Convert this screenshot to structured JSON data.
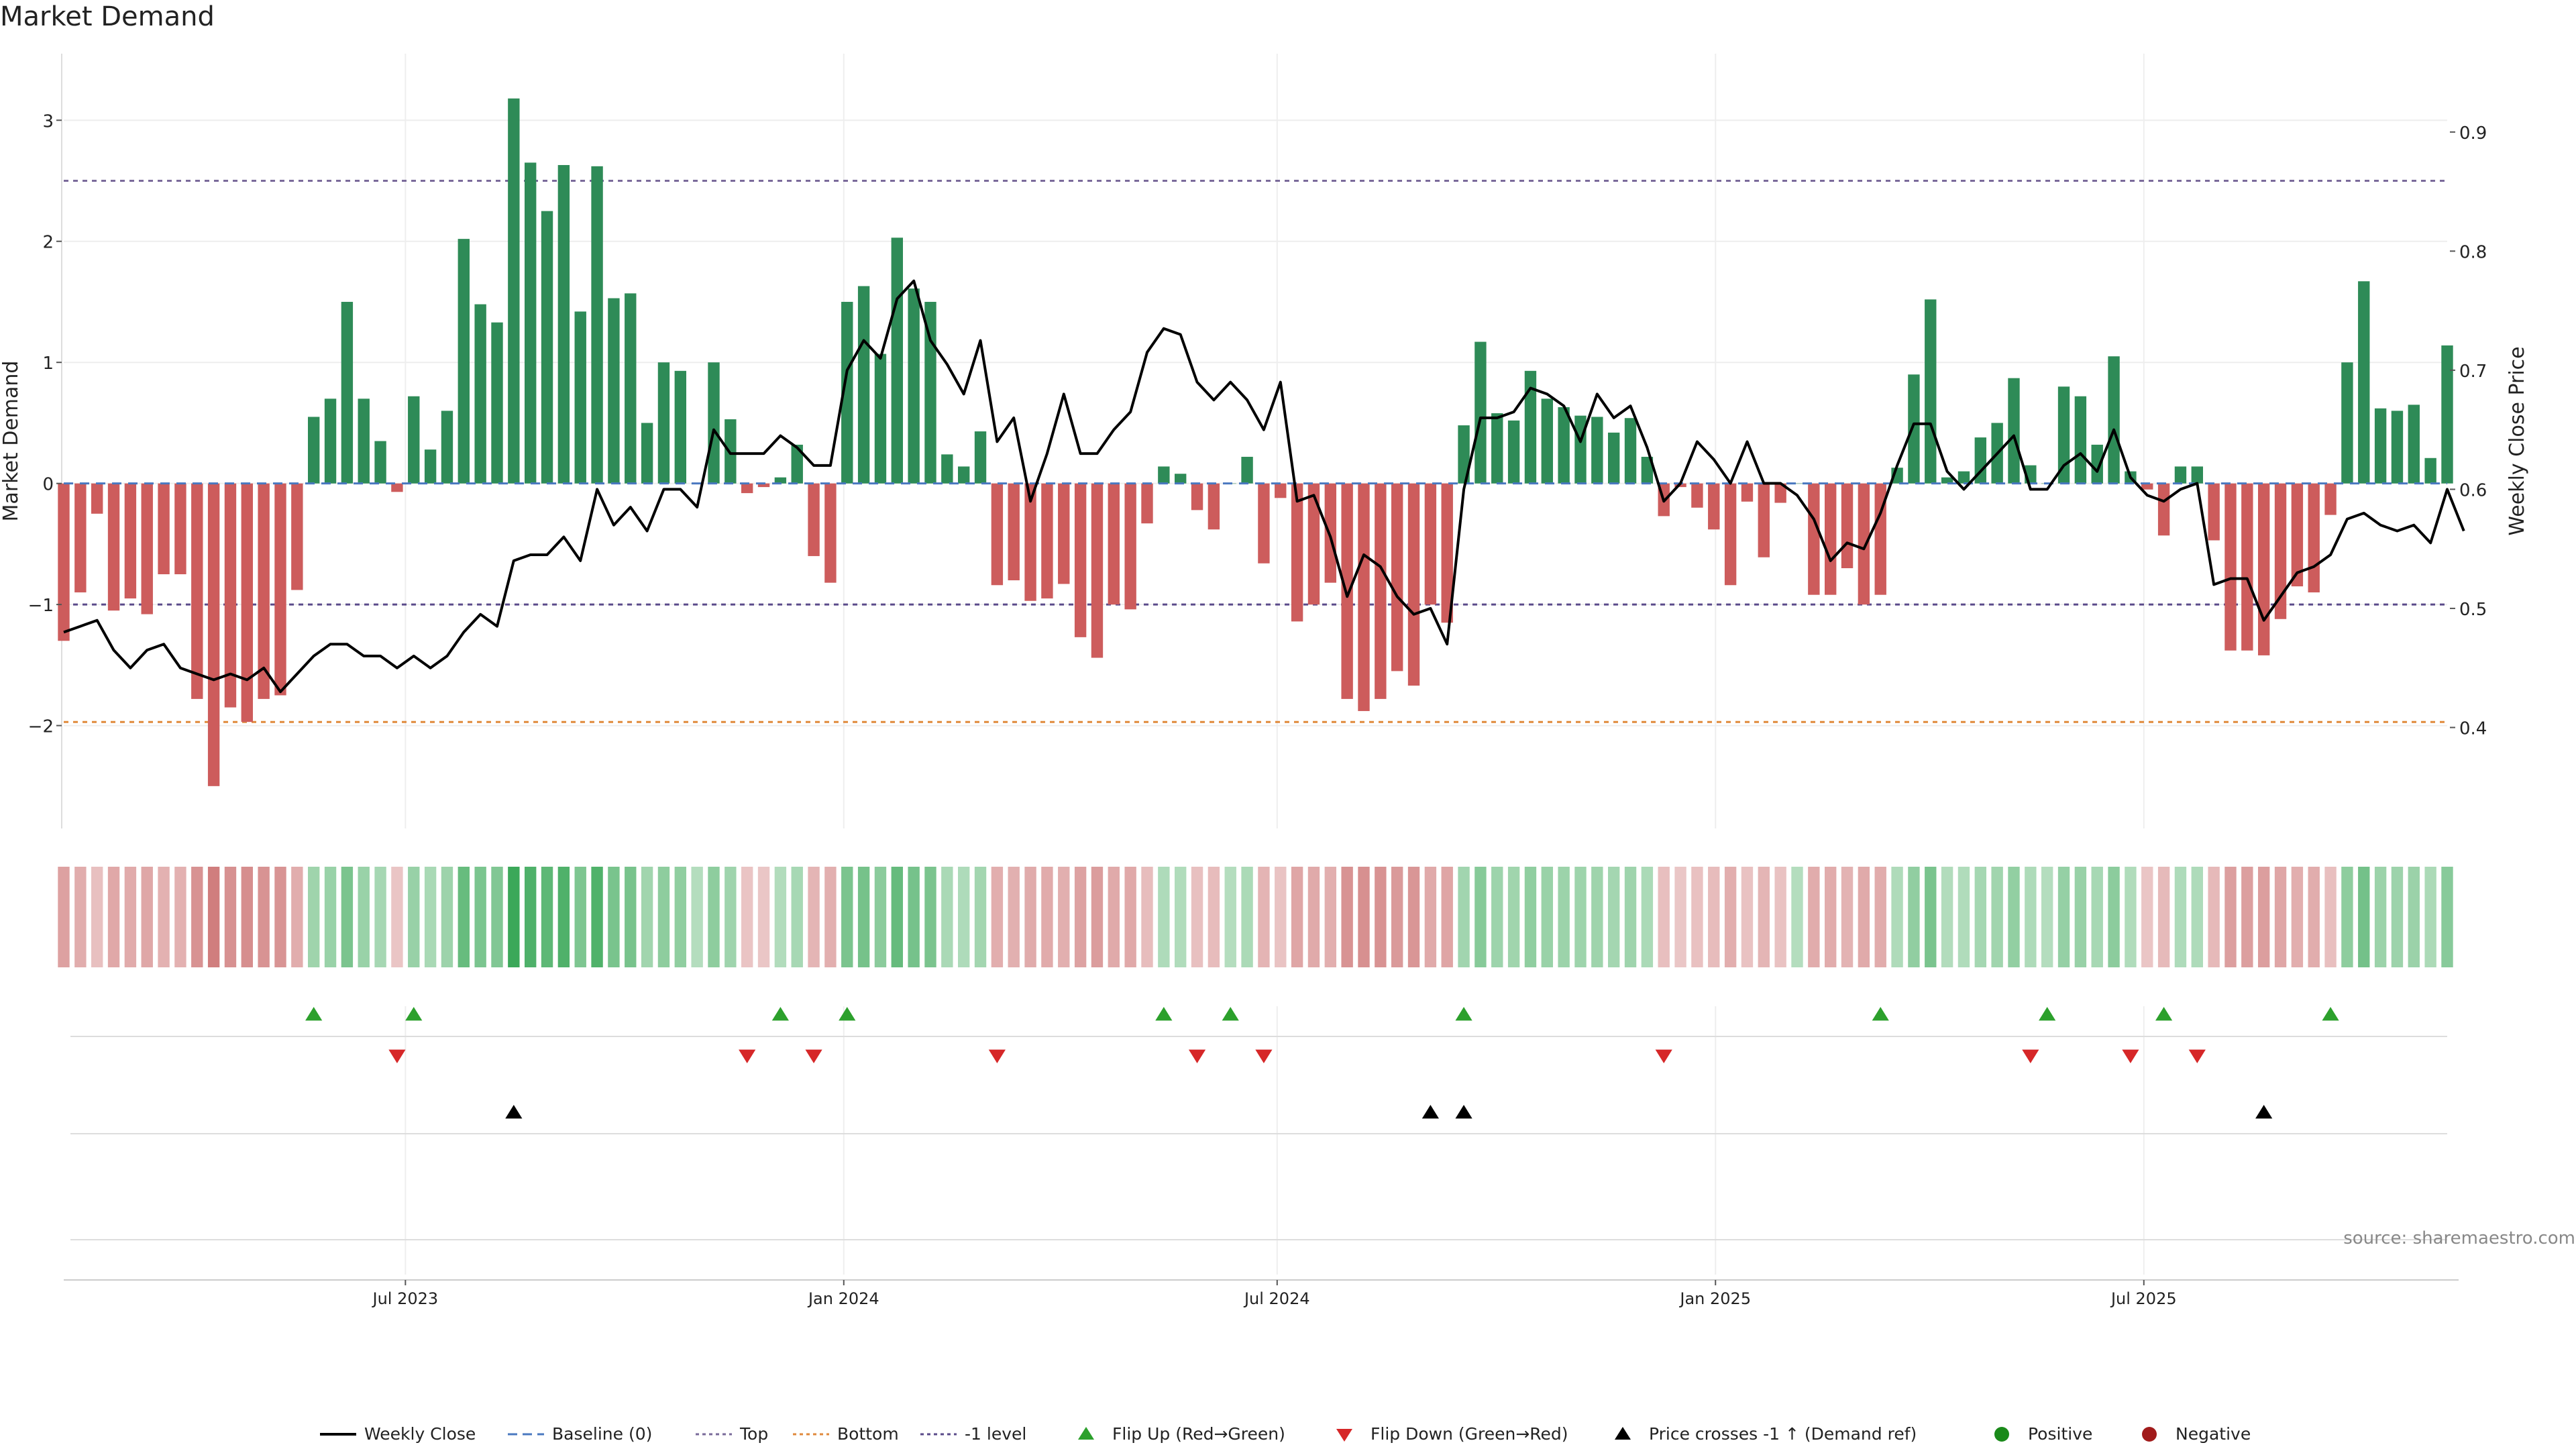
{
  "chart_data": {
    "type": "bar",
    "title": "Market Demand",
    "ylabel": "Market Demand",
    "ylabel_right": "Weekly Close Price",
    "source_text": "source: sharemaestro.com",
    "ylim": [
      -2.85,
      3.55
    ],
    "ylim_right": [
      0.3152,
      0.9658
    ],
    "yticks": [
      {
        "value": 3,
        "label": "3"
      },
      {
        "value": 2,
        "label": "2"
      },
      {
        "value": 1,
        "label": "1"
      },
      {
        "value": 0,
        "label": "0"
      },
      {
        "value": -1,
        "label": "−1"
      },
      {
        "value": -2,
        "label": "−2"
      }
    ],
    "yticks_right": [
      {
        "value": 0.9,
        "label": "0.9"
      },
      {
        "value": 0.8,
        "label": "0.8"
      },
      {
        "value": 0.7,
        "label": "0.7"
      },
      {
        "value": 0.6,
        "label": "0.6"
      },
      {
        "value": 0.5,
        "label": "0.5"
      },
      {
        "value": 0.4,
        "label": "0.4"
      }
    ],
    "xticks": [
      {
        "week": 20.5,
        "label": "Jul 2023"
      },
      {
        "week": 46.8,
        "label": "Jan 2024"
      },
      {
        "week": 72.8,
        "label": "Jul 2024"
      },
      {
        "week": 99.1,
        "label": "Jan 2025"
      },
      {
        "week": 124.8,
        "label": "Jul 2025"
      }
    ],
    "reference_lines": [
      {
        "name": "Top",
        "value": 2.5,
        "color": "#7a6a9a"
      },
      {
        "name": "-1 level",
        "value": -1.0,
        "color": "#5a4a8a"
      },
      {
        "name": "Bottom",
        "value": -1.97,
        "color": "#e08a3c"
      }
    ],
    "colors": {
      "positive_bar": "#2e8b57",
      "negative_bar": "#cd5c5c",
      "price_line": "#000000",
      "flip_up": "#2ca02c",
      "flip_down": "#d62728",
      "cross": "#000000",
      "baseline": "#4a78c0",
      "positive_dot": "#1a8a1a",
      "negative_dot": "#a11b1b"
    },
    "demand": [
      -1.3,
      -0.9,
      -0.25,
      -1.05,
      -0.95,
      -1.08,
      -0.75,
      -0.75,
      -1.78,
      -2.5,
      -1.85,
      -1.97,
      -1.78,
      -1.75,
      -0.88,
      0.55,
      0.7,
      1.5,
      0.7,
      0.35,
      -0.07,
      0.72,
      0.28,
      0.6,
      2.02,
      1.48,
      1.33,
      3.18,
      2.65,
      2.25,
      2.63,
      1.42,
      2.62,
      1.53,
      1.57,
      0.5,
      1.0,
      0.93,
      0.0,
      1.0,
      0.53,
      -0.08,
      -0.03,
      0.05,
      0.32,
      -0.6,
      -0.82,
      1.5,
      1.63,
      1.07,
      2.03,
      1.61,
      1.5,
      0.24,
      0.14,
      0.43,
      -0.84,
      -0.8,
      -0.97,
      -0.95,
      -0.83,
      -1.27,
      -1.44,
      -1.0,
      -1.04,
      -0.33,
      0.14,
      0.08,
      -0.22,
      -0.38,
      0.0,
      0.22,
      -0.66,
      -0.12,
      -1.14,
      -1.0,
      -0.82,
      -1.78,
      -1.88,
      -1.78,
      -1.55,
      -1.67,
      -1.0,
      -1.15,
      0.48,
      1.17,
      0.58,
      0.52,
      0.93,
      0.7,
      0.63,
      0.56,
      0.55,
      0.42,
      0.54,
      0.22,
      -0.27,
      -0.03,
      -0.2,
      -0.38,
      -0.84,
      -0.15,
      -0.61,
      -0.16,
      0.0,
      -0.92,
      -0.92,
      -0.7,
      -1.0,
      -0.92,
      0.13,
      0.9,
      1.52,
      0.05,
      0.1,
      0.38,
      0.5,
      0.87,
      0.15,
      0.0,
      0.8,
      0.72,
      0.32,
      1.05,
      0.1,
      -0.05,
      -0.43,
      0.14,
      0.14,
      -0.47,
      -1.38,
      -1.38,
      -1.42,
      -1.12,
      -0.85,
      -0.9,
      -0.26,
      1.0,
      1.67,
      0.62,
      0.6,
      0.65,
      0.21,
      1.14
    ],
    "price": [
      0.48,
      0.485,
      0.49,
      0.465,
      0.45,
      0.465,
      0.47,
      0.45,
      0.445,
      0.44,
      0.445,
      0.44,
      0.45,
      0.43,
      0.445,
      0.46,
      0.47,
      0.47,
      0.46,
      0.46,
      0.45,
      0.46,
      0.45,
      0.46,
      0.48,
      0.495,
      0.485,
      0.54,
      0.545,
      0.545,
      0.56,
      0.54,
      0.6,
      0.57,
      0.585,
      0.565,
      0.6,
      0.6,
      0.585,
      0.65,
      0.63,
      0.63,
      0.63,
      0.645,
      0.635,
      0.62,
      0.62,
      0.7,
      0.725,
      0.71,
      0.76,
      0.775,
      0.725,
      0.705,
      0.68,
      0.725,
      0.64,
      0.66,
      0.59,
      0.63,
      0.68,
      0.63,
      0.63,
      0.65,
      0.665,
      0.715,
      0.735,
      0.73,
      0.69,
      0.675,
      0.69,
      0.675,
      0.65,
      0.69,
      0.59,
      0.595,
      0.56,
      0.51,
      0.545,
      0.535,
      0.51,
      0.495,
      0.5,
      0.47,
      0.6,
      0.66,
      0.66,
      0.665,
      0.685,
      0.68,
      0.67,
      0.64,
      0.68,
      0.66,
      0.67,
      0.635,
      0.59,
      0.605,
      0.64,
      0.625,
      0.605,
      0.64,
      0.605,
      0.605,
      0.595,
      0.575,
      0.54,
      0.555,
      0.55,
      0.58,
      0.62,
      0.655,
      0.655,
      0.615,
      0.6,
      0.615,
      0.63,
      0.645,
      0.6,
      0.6,
      0.62,
      0.63,
      0.615,
      0.65,
      0.61,
      0.595,
      0.59,
      0.6,
      0.605,
      0.52,
      0.525,
      0.525,
      0.49,
      0.51,
      0.53,
      0.535,
      0.545,
      0.575,
      0.58,
      0.57,
      0.565,
      0.57,
      0.555,
      0.6,
      0.565
    ],
    "flip_up_weeks": [
      15,
      21,
      43,
      47,
      66,
      70,
      84,
      109,
      119,
      126,
      136
    ],
    "flip_down_weeks": [
      20,
      41,
      45,
      56,
      68,
      72,
      96,
      118,
      124,
      128
    ],
    "price_cross_weeks": [
      27,
      82,
      84,
      132
    ],
    "legend": [
      {
        "label": "Weekly Close",
        "kind": "line",
        "color": "#000000"
      },
      {
        "label": "Baseline (0)",
        "kind": "dash",
        "color": "#4a78c0"
      },
      {
        "label": "Top",
        "kind": "dot",
        "color": "#7a6a9a"
      },
      {
        "label": "Bottom",
        "kind": "dot",
        "color": "#e08a3c"
      },
      {
        "label": "-1 level",
        "kind": "dot",
        "color": "#5a4a8a"
      },
      {
        "label": "Flip Up (Red→Green)",
        "kind": "tri-up",
        "color": "#2ca02c"
      },
      {
        "label": "Flip Down (Green→Red)",
        "kind": "tri-down",
        "color": "#d62728"
      },
      {
        "label": "Price crosses -1 ↑ (Demand ref)",
        "kind": "tri-up",
        "color": "#000000"
      },
      {
        "label": "Positive",
        "kind": "circle",
        "color": "#1a8a1a"
      },
      {
        "label": "Negative",
        "kind": "circle",
        "color": "#a11b1b"
      }
    ]
  }
}
